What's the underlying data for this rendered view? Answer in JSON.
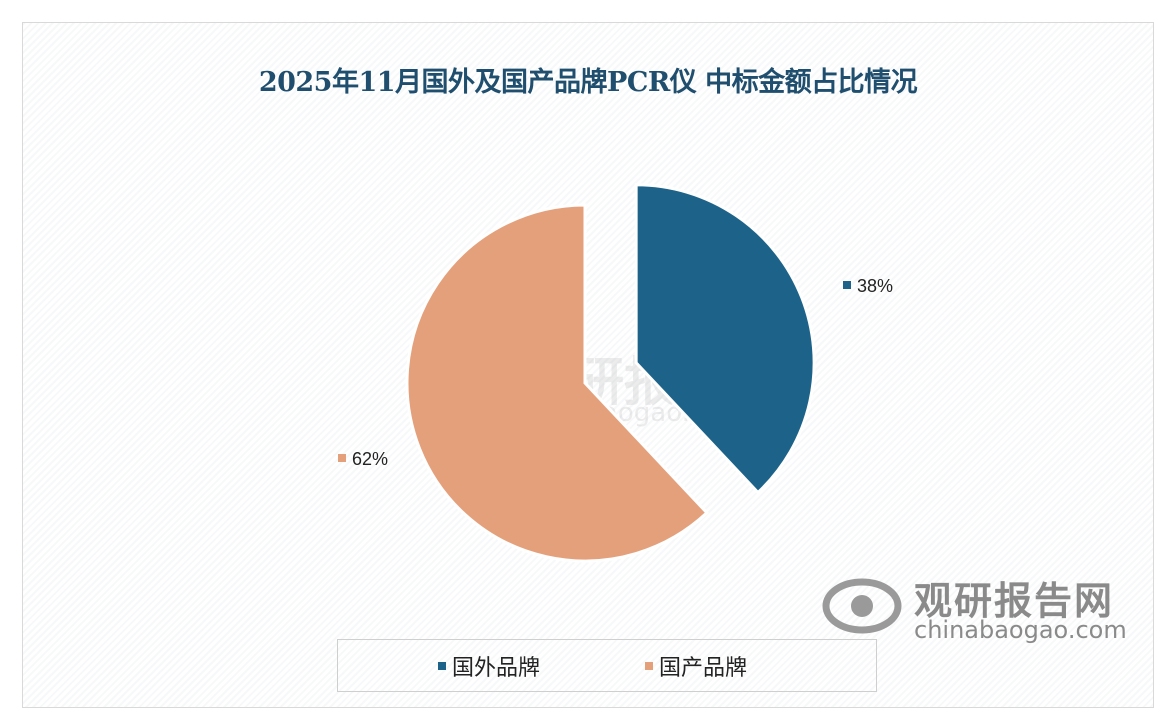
{
  "chart_data": {
    "type": "pie",
    "title": "2025年11月国外及国产品牌PCR仪 中标金额占比情况",
    "categories": [
      "国外品牌",
      "国产品牌"
    ],
    "values": [
      38,
      62
    ],
    "data_labels": [
      "38%",
      "62%"
    ],
    "colors": [
      "#1d6389",
      "#e4a07b"
    ],
    "exploded": [
      "国外品牌"
    ],
    "legend_position": "bottom"
  },
  "watermark": {
    "cn": "观研报告网",
    "en": "chinabaogao.com"
  },
  "logo": {
    "cn": "观研报告网",
    "en": "chinabaogao.com"
  }
}
